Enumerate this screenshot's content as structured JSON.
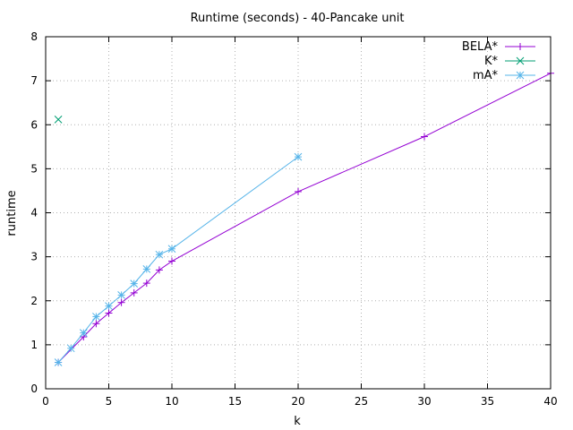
{
  "chart_data": {
    "type": "line",
    "title": "Runtime (seconds) - 40-Pancake unit",
    "xlabel": "k",
    "ylabel": "runtime",
    "xlim": [
      0,
      40
    ],
    "ylim": [
      0,
      8
    ],
    "xticks": [
      0,
      5,
      10,
      15,
      20,
      25,
      30,
      35,
      40
    ],
    "yticks": [
      0,
      1,
      2,
      3,
      4,
      5,
      6,
      7,
      8
    ],
    "grid": true,
    "legend": "top-right",
    "series": [
      {
        "name": "BELA*",
        "color": "#9400d3",
        "marker": "plus",
        "x": [
          1,
          3,
          4,
          5,
          6,
          7,
          8,
          9,
          10,
          20,
          30,
          40
        ],
        "y": [
          0.6,
          1.18,
          1.48,
          1.72,
          1.96,
          2.18,
          2.4,
          2.7,
          2.9,
          4.48,
          5.73,
          7.17
        ]
      },
      {
        "name": "K*",
        "color": "#009e73",
        "marker": "cross",
        "x": [
          1
        ],
        "y": [
          6.12
        ]
      },
      {
        "name": "mA*",
        "color": "#56b4e9",
        "marker": "star",
        "x": [
          1,
          2,
          3,
          4,
          5,
          6,
          7,
          8,
          9,
          10,
          20
        ],
        "y": [
          0.6,
          0.92,
          1.27,
          1.64,
          1.88,
          2.13,
          2.39,
          2.72,
          3.05,
          3.18,
          5.27
        ]
      }
    ]
  }
}
